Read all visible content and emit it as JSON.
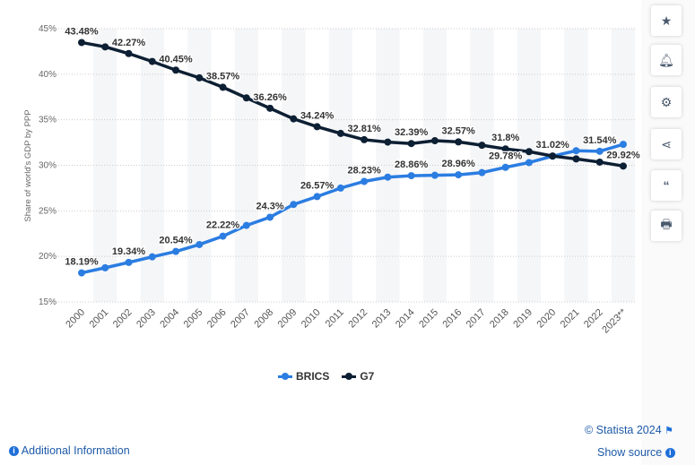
{
  "chart_data": {
    "type": "line",
    "title": "",
    "ylabel": "Share of world's GDP by PPP",
    "xlabel": "",
    "ylim": [
      15,
      45
    ],
    "yticks": [
      "15%",
      "20%",
      "25%",
      "30%",
      "35%",
      "40%",
      "45%"
    ],
    "x": [
      "2000",
      "2001",
      "2002",
      "2003",
      "2004",
      "2005",
      "2006",
      "2007",
      "2008",
      "2009",
      "2010",
      "2011",
      "2012",
      "2013",
      "2014",
      "2015",
      "2016",
      "2017",
      "2018",
      "2019",
      "2020",
      "2021",
      "2022",
      "2023**"
    ],
    "series": [
      {
        "name": "BRICS",
        "color": "#2b7de1",
        "values": [
          18.19,
          18.75,
          19.34,
          19.95,
          20.54,
          21.3,
          22.22,
          23.4,
          24.3,
          25.7,
          26.57,
          27.5,
          28.23,
          28.7,
          28.86,
          28.9,
          28.96,
          29.2,
          29.78,
          30.3,
          31.0,
          31.6,
          31.54,
          32.3
        ],
        "labels": {
          "0": "18.19%",
          "2": "19.34%",
          "4": "20.54%",
          "6": "22.22%",
          "8": "24.3%",
          "10": "26.57%",
          "12": "28.23%",
          "14": "28.86%",
          "16": "28.96%",
          "18": "29.78%",
          "22": "31.54%"
        }
      },
      {
        "name": "G7",
        "color": "#0d1f33",
        "values": [
          43.48,
          43.0,
          42.27,
          41.4,
          40.45,
          39.6,
          38.57,
          37.4,
          36.26,
          35.1,
          34.24,
          33.5,
          32.81,
          32.55,
          32.39,
          32.7,
          32.57,
          32.2,
          31.8,
          31.5,
          31.02,
          30.7,
          30.35,
          29.92
        ],
        "labels": {
          "0": "43.48%",
          "2": "42.27%",
          "4": "40.45%",
          "6": "38.57%",
          "8": "36.26%",
          "10": "34.24%",
          "12": "32.81%",
          "14": "32.39%",
          "16": "32.57%",
          "18": "31.8%",
          "20": "31.02%",
          "23": "29.92%"
        }
      }
    ],
    "grid": true,
    "legend_placement": "bottom-center"
  },
  "legend": {
    "brics": "BRICS",
    "g7": "G7"
  },
  "footer": {
    "copyright": "© Statista 2024",
    "show_source": "Show source",
    "additional_info": "Additional Information"
  }
}
